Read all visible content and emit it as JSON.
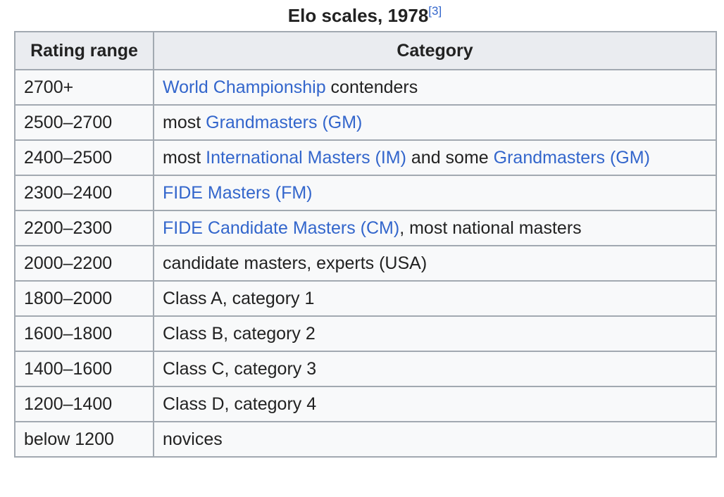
{
  "caption": {
    "title": "Elo scales, 1978",
    "ref": "[3]"
  },
  "headers": {
    "col1": "Rating range",
    "col2": "Category"
  },
  "rows": [
    {
      "range": "2700+",
      "segments": [
        {
          "text": "World Championship",
          "link": true
        },
        {
          "text": " contenders",
          "link": false
        }
      ]
    },
    {
      "range": "2500–2700",
      "segments": [
        {
          "text": "most ",
          "link": false
        },
        {
          "text": "Grandmasters (GM)",
          "link": true
        }
      ]
    },
    {
      "range": "2400–2500",
      "segments": [
        {
          "text": "most ",
          "link": false
        },
        {
          "text": "International Masters (IM)",
          "link": true
        },
        {
          "text": " and some ",
          "link": false
        },
        {
          "text": "Grandmasters (GM)",
          "link": true
        }
      ]
    },
    {
      "range": "2300–2400",
      "segments": [
        {
          "text": "FIDE Masters (FM)",
          "link": true
        }
      ]
    },
    {
      "range": "2200–2300",
      "segments": [
        {
          "text": "FIDE Candidate Masters (CM)",
          "link": true
        },
        {
          "text": ", most national masters",
          "link": false
        }
      ]
    },
    {
      "range": "2000–2200",
      "segments": [
        {
          "text": "candidate masters, experts (USA)",
          "link": false
        }
      ]
    },
    {
      "range": "1800–2000",
      "segments": [
        {
          "text": "Class A, category 1",
          "link": false
        }
      ]
    },
    {
      "range": "1600–1800",
      "segments": [
        {
          "text": "Class B, category 2",
          "link": false
        }
      ]
    },
    {
      "range": "1400–1600",
      "segments": [
        {
          "text": "Class C, category 3",
          "link": false
        }
      ]
    },
    {
      "range": "1200–1400",
      "segments": [
        {
          "text": "Class D, category 4",
          "link": false
        }
      ]
    },
    {
      "range": "below 1200",
      "segments": [
        {
          "text": "novices",
          "link": false
        }
      ]
    }
  ],
  "colors": {
    "link": "#3366cc",
    "text": "#222222",
    "border": "#a2a9b1",
    "header_bg": "#eaecf0",
    "cell_bg": "#f8f9fa"
  }
}
